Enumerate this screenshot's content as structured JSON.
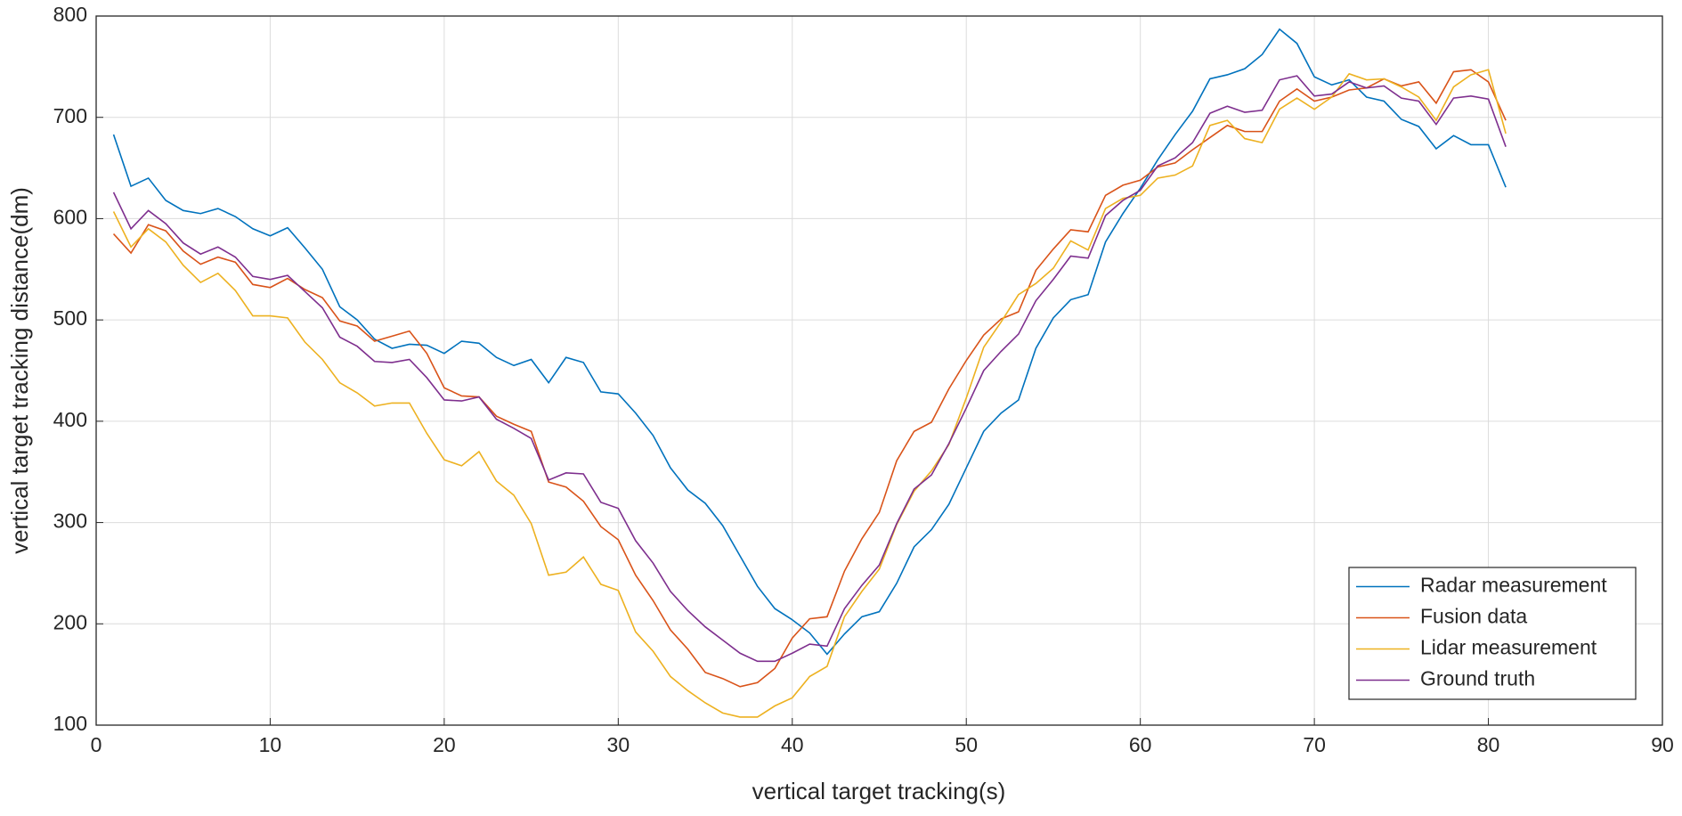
{
  "chart_data": {
    "type": "line",
    "x_label": "vertical target tracking(s)",
    "y_label": "vertical target tracking distance(dm)",
    "x": [
      1,
      2,
      3,
      4,
      5,
      6,
      7,
      8,
      9,
      10,
      11,
      12,
      13,
      14,
      15,
      16,
      17,
      18,
      19,
      20,
      21,
      22,
      23,
      24,
      25,
      26,
      27,
      28,
      29,
      30,
      31,
      32,
      33,
      34,
      35,
      36,
      37,
      38,
      39,
      40,
      41,
      42,
      43,
      44,
      45,
      46,
      47,
      48,
      49,
      50,
      51,
      52,
      53,
      54,
      55,
      56,
      57,
      58,
      59,
      60,
      61,
      62,
      63,
      64,
      65,
      66,
      67,
      68,
      69,
      70,
      71,
      72,
      73,
      74,
      75,
      76,
      77,
      78,
      79,
      80,
      81
    ],
    "series": [
      {
        "name": "Radar measurement",
        "color": "#0072BD",
        "values": [
          683,
          632,
          640,
          618,
          608,
          605,
          610,
          602,
          590,
          583,
          591,
          571,
          550,
          513,
          500,
          481,
          472,
          476,
          475,
          467,
          479,
          477,
          463,
          455,
          461,
          438,
          463,
          458,
          429,
          427,
          408,
          386,
          354,
          332,
          319,
          297,
          267,
          237,
          215,
          204,
          191,
          170,
          190,
          207,
          212,
          240,
          276,
          293,
          318,
          354,
          390,
          408,
          421,
          472,
          502,
          520,
          525,
          577,
          605,
          630,
          658,
          683,
          706,
          738,
          742,
          748,
          762,
          787,
          773,
          740,
          732,
          737,
          720,
          716,
          698,
          691,
          669,
          682,
          673,
          673,
          631
        ]
      },
      {
        "name": "Fusion data",
        "color": "#D95319",
        "values": [
          585,
          566,
          594,
          588,
          568,
          555,
          562,
          557,
          535,
          532,
          541,
          530,
          522,
          499,
          494,
          479,
          484,
          489,
          467,
          433,
          425,
          424,
          405,
          397,
          390,
          340,
          335,
          321,
          296,
          283,
          248,
          223,
          194,
          175,
          152,
          146,
          138,
          142,
          156,
          186,
          205,
          207,
          252,
          284,
          310,
          361,
          390,
          399,
          432,
          460,
          485,
          501,
          508,
          549,
          570,
          589,
          587,
          623,
          633,
          638,
          651,
          655,
          668,
          680,
          692,
          686,
          686,
          716,
          728,
          716,
          720,
          727,
          729,
          738,
          731,
          735,
          714,
          745,
          747,
          735,
          697
        ]
      },
      {
        "name": "Lidar measurement",
        "color": "#EDB120",
        "values": [
          607,
          572,
          590,
          577,
          554,
          537,
          546,
          529,
          504,
          504,
          502,
          478,
          461,
          438,
          428,
          415,
          418,
          418,
          388,
          362,
          356,
          370,
          341,
          327,
          299,
          248,
          251,
          266,
          239,
          233,
          192,
          173,
          148,
          134,
          122,
          112,
          108,
          108,
          119,
          127,
          148,
          158,
          207,
          232,
          254,
          298,
          331,
          351,
          377,
          423,
          473,
          498,
          525,
          536,
          551,
          578,
          569,
          610,
          620,
          623,
          640,
          643,
          652,
          692,
          697,
          679,
          675,
          708,
          719,
          708,
          720,
          743,
          737,
          738,
          730,
          720,
          697,
          730,
          742,
          747,
          684
        ]
      },
      {
        "name": "Ground truth",
        "color": "#7E2F8E",
        "values": [
          626,
          590,
          608,
          595,
          576,
          565,
          572,
          562,
          543,
          540,
          544,
          528,
          512,
          483,
          474,
          459,
          458,
          461,
          443,
          421,
          420,
          424,
          402,
          393,
          383,
          342,
          349,
          348,
          320,
          314,
          282,
          260,
          232,
          213,
          197,
          184,
          171,
          163,
          163,
          171,
          180,
          178,
          215,
          238,
          258,
          299,
          333,
          347,
          378,
          413,
          450,
          469,
          486,
          519,
          540,
          563,
          561,
          603,
          618,
          628,
          652,
          660,
          675,
          704,
          711,
          705,
          707,
          737,
          741,
          721,
          723,
          735,
          729,
          731,
          719,
          716,
          693,
          719,
          721,
          718,
          671
        ]
      }
    ],
    "xlim": [
      0,
      90
    ],
    "xticks": [
      0,
      10,
      20,
      30,
      40,
      50,
      60,
      70,
      80,
      90
    ],
    "ylim": [
      100,
      800
    ],
    "yticks": [
      100,
      200,
      300,
      400,
      500,
      600,
      700,
      800
    ],
    "grid": true,
    "legend": "lower right"
  }
}
